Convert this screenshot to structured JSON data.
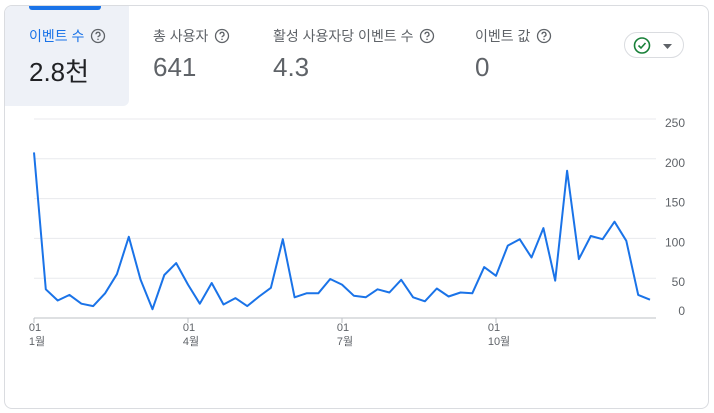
{
  "metrics": [
    {
      "label": "이벤트 수",
      "value": "2.8천"
    },
    {
      "label": "총 사용자",
      "value": "641"
    },
    {
      "label": "활성 사용자당 이벤트 수",
      "value": "4.3"
    },
    {
      "label": "이벤트 값",
      "value": "0"
    }
  ],
  "chart_data": {
    "type": "line",
    "color": "#1a73e8",
    "categories": [
      "01\n1월",
      null,
      null,
      null,
      null,
      null,
      null,
      null,
      null,
      null,
      null,
      null,
      null,
      "01\n4월",
      null,
      null,
      null,
      null,
      null,
      null,
      null,
      null,
      null,
      null,
      null,
      null,
      "01\n7월",
      null,
      null,
      null,
      null,
      null,
      null,
      null,
      null,
      null,
      null,
      null,
      null,
      "01\n10월",
      null,
      null,
      null,
      null,
      null,
      null,
      null,
      null,
      null,
      null,
      null,
      null,
      null
    ],
    "values": [
      208,
      36,
      22,
      29,
      18,
      15,
      31,
      55,
      102,
      48,
      11,
      54,
      69,
      42,
      18,
      44,
      17,
      25,
      15,
      27,
      38,
      99,
      26,
      31,
      31,
      49,
      42,
      28,
      26,
      36,
      32,
      48,
      26,
      21,
      37,
      27,
      32,
      31,
      64,
      53,
      91,
      99,
      76,
      113,
      47,
      185,
      74,
      103,
      99,
      121,
      97,
      29,
      23
    ],
    "ylim": [
      0,
      250
    ],
    "yticks": [
      0,
      50,
      100,
      150,
      200,
      250
    ],
    "grid": true
  }
}
